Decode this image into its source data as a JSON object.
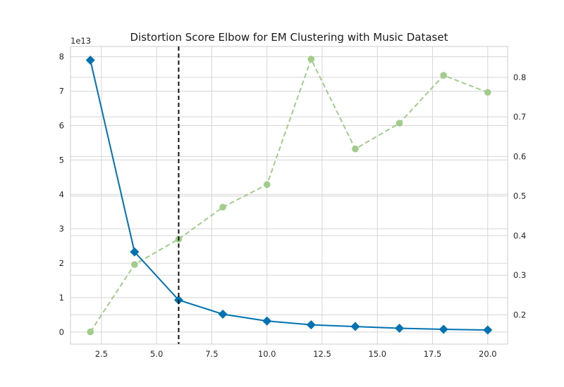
{
  "chart_data": {
    "type": "line",
    "title": "Distortion Score Elbow for EM Clustering with Music Dataset",
    "x_ticks": [
      2.5,
      5.0,
      7.5,
      10.0,
      12.5,
      15.0,
      17.5,
      20.0
    ],
    "x_tick_labels": [
      "2.5",
      "5.0",
      "7.5",
      "10.0",
      "12.5",
      "15.0",
      "17.5",
      "20.0"
    ],
    "xlim": [
      1.1,
      20.9
    ],
    "y_left_ticks": [
      0,
      1,
      2,
      3,
      4,
      5,
      6,
      7,
      8
    ],
    "y_left_tick_labels": [
      "0",
      "1",
      "2",
      "3",
      "4",
      "5",
      "6",
      "7",
      "8"
    ],
    "y_left_offset_label": "1e13",
    "ylim_left": [
      -0.35,
      8.3
    ],
    "y_right_ticks": [
      0.2,
      0.3,
      0.4,
      0.5,
      0.6,
      0.7,
      0.8
    ],
    "y_right_tick_labels": [
      "0.2",
      "0.3",
      "0.4",
      "0.5",
      "0.6",
      "0.7",
      "0.8"
    ],
    "ylim_right": [
      0.126,
      0.878
    ],
    "elbow_x": 6,
    "grid": true,
    "series": [
      {
        "axis": "left",
        "color": "#0072b2",
        "marker": "diamond",
        "line_style": "solid",
        "x": [
          2,
          4,
          6,
          8,
          10,
          12,
          14,
          16,
          18,
          20
        ],
        "values": [
          7.9,
          2.33,
          0.93,
          0.52,
          0.32,
          0.21,
          0.16,
          0.11,
          0.08,
          0.06
        ]
      },
      {
        "axis": "right",
        "color": "#a1cc8c",
        "marker": "circle",
        "line_style": "dashed",
        "x": [
          2,
          4,
          6,
          8,
          10,
          12,
          14,
          16,
          18,
          20
        ],
        "values": [
          0.157,
          0.327,
          0.391,
          0.472,
          0.529,
          0.846,
          0.619,
          0.684,
          0.805,
          0.762
        ]
      }
    ]
  }
}
